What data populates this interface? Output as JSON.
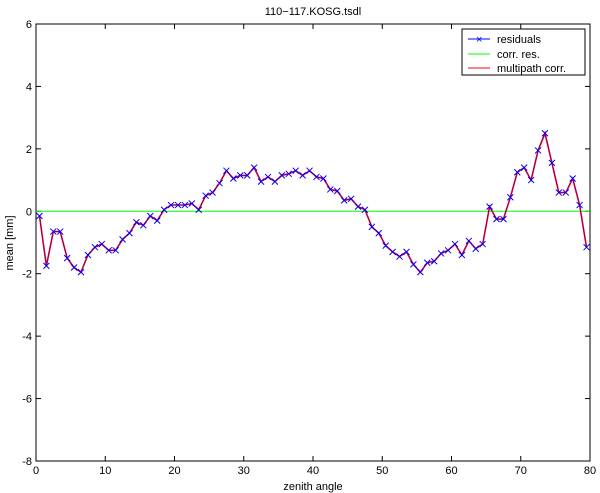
{
  "chart_data": {
    "type": "line",
    "title": "110−117.KOSG.tsdl",
    "xlabel": "zenith angle",
    "ylabel": "mean  [mm]",
    "xlim": [
      0,
      80
    ],
    "ylim": [
      -8,
      6
    ],
    "xticks": [
      0,
      10,
      20,
      30,
      40,
      50,
      60,
      70,
      80
    ],
    "yticks": [
      -8,
      -6,
      -4,
      -2,
      0,
      2,
      4,
      6
    ],
    "grid": false,
    "legend_placement": "top-right",
    "x": [
      0.5,
      1.5,
      2.5,
      3.5,
      4.5,
      5.5,
      6.5,
      7.5,
      8.5,
      9.5,
      10.5,
      11.5,
      12.5,
      13.5,
      14.5,
      15.5,
      16.5,
      17.5,
      18.5,
      19.5,
      20.5,
      21.5,
      22.5,
      23.5,
      24.5,
      25.5,
      26.5,
      27.5,
      28.5,
      29.5,
      30.5,
      31.5,
      32.5,
      33.5,
      34.5,
      35.5,
      36.5,
      37.5,
      38.5,
      39.5,
      40.5,
      41.5,
      42.5,
      43.5,
      44.5,
      45.5,
      46.5,
      47.5,
      48.5,
      49.5,
      50.5,
      51.5,
      52.5,
      53.5,
      54.5,
      55.5,
      56.5,
      57.5,
      58.5,
      59.5,
      60.5,
      61.5,
      62.5,
      63.5,
      64.5,
      65.5,
      66.5,
      67.5,
      68.5,
      69.5,
      70.5,
      71.5,
      72.5,
      73.5,
      74.5,
      75.5,
      76.5,
      77.5,
      78.5,
      79.5
    ],
    "series": [
      {
        "name": "residuals",
        "color": "#0000ff",
        "marker": "x",
        "values": [
          -0.15,
          -1.75,
          -0.65,
          -0.65,
          -1.5,
          -1.8,
          -1.95,
          -1.4,
          -1.15,
          -1.05,
          -1.25,
          -1.25,
          -0.9,
          -0.7,
          -0.35,
          -0.45,
          -0.15,
          -0.3,
          0.05,
          0.2,
          0.2,
          0.2,
          0.25,
          0.05,
          0.5,
          0.6,
          0.9,
          1.3,
          1.05,
          1.15,
          1.15,
          1.4,
          0.95,
          1.1,
          0.95,
          1.15,
          1.2,
          1.3,
          1.15,
          1.3,
          1.1,
          1.05,
          0.7,
          0.65,
          0.35,
          0.4,
          0.15,
          0.05,
          -0.5,
          -0.7,
          -1.1,
          -1.3,
          -1.45,
          -1.3,
          -1.7,
          -1.95,
          -1.65,
          -1.6,
          -1.35,
          -1.25,
          -1.05,
          -1.4,
          -0.95,
          -1.2,
          -1.05,
          0.15,
          -0.25,
          -0.25,
          0.45,
          1.25,
          1.4,
          1.0,
          1.95,
          2.5,
          1.55,
          0.6,
          0.6,
          1.05,
          0.2,
          -1.15
        ]
      },
      {
        "name": "corr. res.",
        "color": "#00ff00",
        "values": "constant 0"
      },
      {
        "name": "multipath corr.",
        "color": "#ff0000",
        "values": "same as residuals"
      }
    ]
  }
}
